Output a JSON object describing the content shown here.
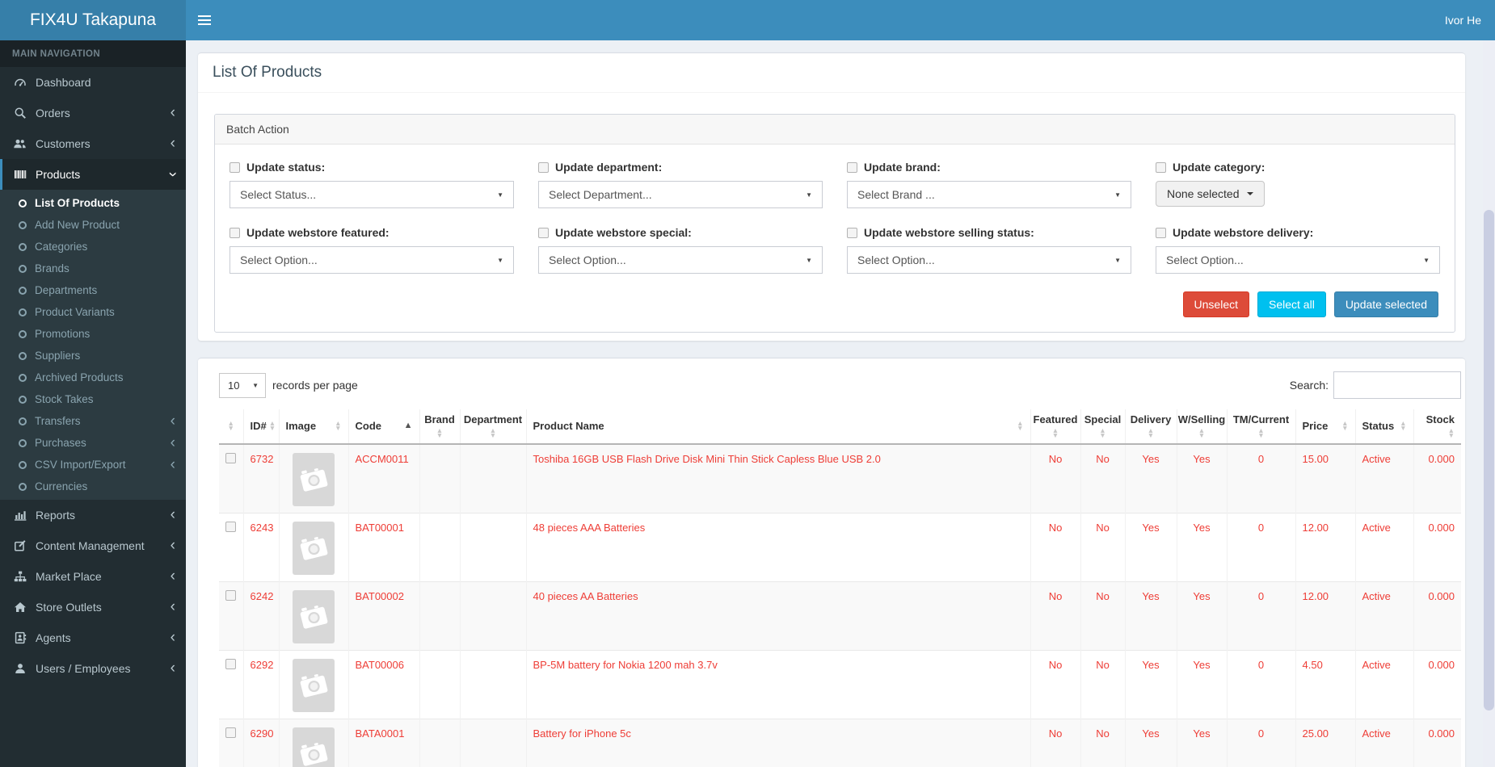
{
  "brand": "FIX4U Takapuna",
  "topbar": {
    "user": "Ivor He"
  },
  "colors": {
    "navbar": "#3c8dbc",
    "logo": "#367fa9",
    "sidebar": "#222d32",
    "sidebar_submenu": "#2c3b41",
    "content_bg": "#ecf0f5",
    "danger": "#dd4b39",
    "info": "#00c0ef",
    "primary": "#3c8dbc",
    "table_text": "#ee3d36"
  },
  "sidebar": {
    "section_label": "MAIN NAVIGATION",
    "items": [
      {
        "label": "Dashboard",
        "icon": "gauge-icon"
      },
      {
        "label": "Orders",
        "icon": "search-icon",
        "chevron": true
      },
      {
        "label": "Customers",
        "icon": "users-icon",
        "chevron": true
      },
      {
        "label": "Products",
        "icon": "barcode-icon",
        "chevron": true,
        "active": true,
        "expanded": true,
        "children": [
          {
            "label": "List Of Products",
            "active": true
          },
          {
            "label": "Add New Product"
          },
          {
            "label": "Categories"
          },
          {
            "label": "Brands"
          },
          {
            "label": "Departments"
          },
          {
            "label": "Product Variants"
          },
          {
            "label": "Promotions"
          },
          {
            "label": "Suppliers"
          },
          {
            "label": "Archived Products"
          },
          {
            "label": "Stock Takes"
          },
          {
            "label": "Transfers",
            "chevron": true
          },
          {
            "label": "Purchases",
            "chevron": true
          },
          {
            "label": "CSV Import/Export",
            "chevron": true
          },
          {
            "label": "Currencies"
          }
        ]
      },
      {
        "label": "Reports",
        "icon": "bar-chart-icon",
        "chevron": true
      },
      {
        "label": "Content Management",
        "icon": "edit-icon",
        "chevron": true
      },
      {
        "label": "Market Place",
        "icon": "sitemap-icon",
        "chevron": true
      },
      {
        "label": "Store Outlets",
        "icon": "home-icon",
        "chevron": true
      },
      {
        "label": "Agents",
        "icon": "address-book-icon",
        "chevron": true
      },
      {
        "label": "Users / Employees",
        "icon": "user-icon",
        "chevron": true
      }
    ]
  },
  "page": {
    "title": "List Of Products"
  },
  "batch": {
    "title": "Batch Action",
    "fields": [
      {
        "label": "Update status:",
        "control": "select",
        "value": "Select Status..."
      },
      {
        "label": "Update department:",
        "control": "select",
        "value": "Select Department..."
      },
      {
        "label": "Update brand:",
        "control": "select",
        "value": "Select Brand ..."
      },
      {
        "label": "Update category:",
        "control": "multiselect",
        "value": "None selected"
      },
      {
        "label": "Update webstore featured:",
        "control": "select",
        "value": "Select Option..."
      },
      {
        "label": "Update webstore special:",
        "control": "select",
        "value": "Select Option..."
      },
      {
        "label": "Update webstore selling status:",
        "control": "select",
        "value": "Select Option..."
      },
      {
        "label": "Update webstore delivery:",
        "control": "select",
        "value": "Select Option..."
      }
    ],
    "buttons": [
      {
        "label": "Unselect",
        "style": "danger"
      },
      {
        "label": "Select all",
        "style": "info"
      },
      {
        "label": "Update selected",
        "style": "primary"
      }
    ]
  },
  "table": {
    "length_value": "10",
    "length_suffix": "records per page",
    "search_label": "Search:",
    "search_value": "",
    "columns": [
      {
        "key": "check",
        "label": "",
        "sort": "both"
      },
      {
        "key": "id",
        "label": "ID#",
        "sort": "both"
      },
      {
        "key": "image",
        "label": "Image",
        "sort": "both"
      },
      {
        "key": "code",
        "label": "Code",
        "sort": "asc"
      },
      {
        "key": "brand",
        "label": "Brand",
        "sort": "both"
      },
      {
        "key": "dept",
        "label": "Department",
        "sort": "both"
      },
      {
        "key": "name",
        "label": "Product Name",
        "sort": "both"
      },
      {
        "key": "feat",
        "label": "Featured",
        "sort": "both"
      },
      {
        "key": "spec",
        "label": "Special",
        "sort": "both"
      },
      {
        "key": "del",
        "label": "Delivery",
        "sort": "both"
      },
      {
        "key": "wsell",
        "label": "W/Selling",
        "sort": "both"
      },
      {
        "key": "tm",
        "label": "TM/Current",
        "sort": "both"
      },
      {
        "key": "price",
        "label": "Price",
        "sort": "both"
      },
      {
        "key": "status",
        "label": "Status",
        "sort": "both"
      },
      {
        "key": "stock",
        "label": "Stock",
        "sort": "both"
      }
    ],
    "rows": [
      {
        "id": "6732",
        "code": "ACCM0011",
        "brand": "",
        "dept": "",
        "name": "Toshiba 16GB USB Flash Drive Disk Mini Thin Stick Capless Blue USB 2.0",
        "feat": "No",
        "spec": "No",
        "del": "Yes",
        "wsell": "Yes",
        "tm": "0",
        "price": "15.00",
        "status": "Active",
        "stock": "0.000"
      },
      {
        "id": "6243",
        "code": "BAT00001",
        "brand": "",
        "dept": "",
        "name": "48 pieces AAA Batteries",
        "feat": "No",
        "spec": "No",
        "del": "Yes",
        "wsell": "Yes",
        "tm": "0",
        "price": "12.00",
        "status": "Active",
        "stock": "0.000"
      },
      {
        "id": "6242",
        "code": "BAT00002",
        "brand": "",
        "dept": "",
        "name": "40 pieces AA Batteries",
        "feat": "No",
        "spec": "No",
        "del": "Yes",
        "wsell": "Yes",
        "tm": "0",
        "price": "12.00",
        "status": "Active",
        "stock": "0.000"
      },
      {
        "id": "6292",
        "code": "BAT00006",
        "brand": "",
        "dept": "",
        "name": "BP-5M battery for Nokia 1200 mah 3.7v",
        "feat": "No",
        "spec": "No",
        "del": "Yes",
        "wsell": "Yes",
        "tm": "0",
        "price": "4.50",
        "status": "Active",
        "stock": "0.000"
      },
      {
        "id": "6290",
        "code": "BATA0001",
        "brand": "",
        "dept": "",
        "name": "Battery for iPhone 5c",
        "feat": "No",
        "spec": "No",
        "del": "Yes",
        "wsell": "Yes",
        "tm": "0",
        "price": "25.00",
        "status": "Active",
        "stock": "0.000"
      }
    ]
  }
}
